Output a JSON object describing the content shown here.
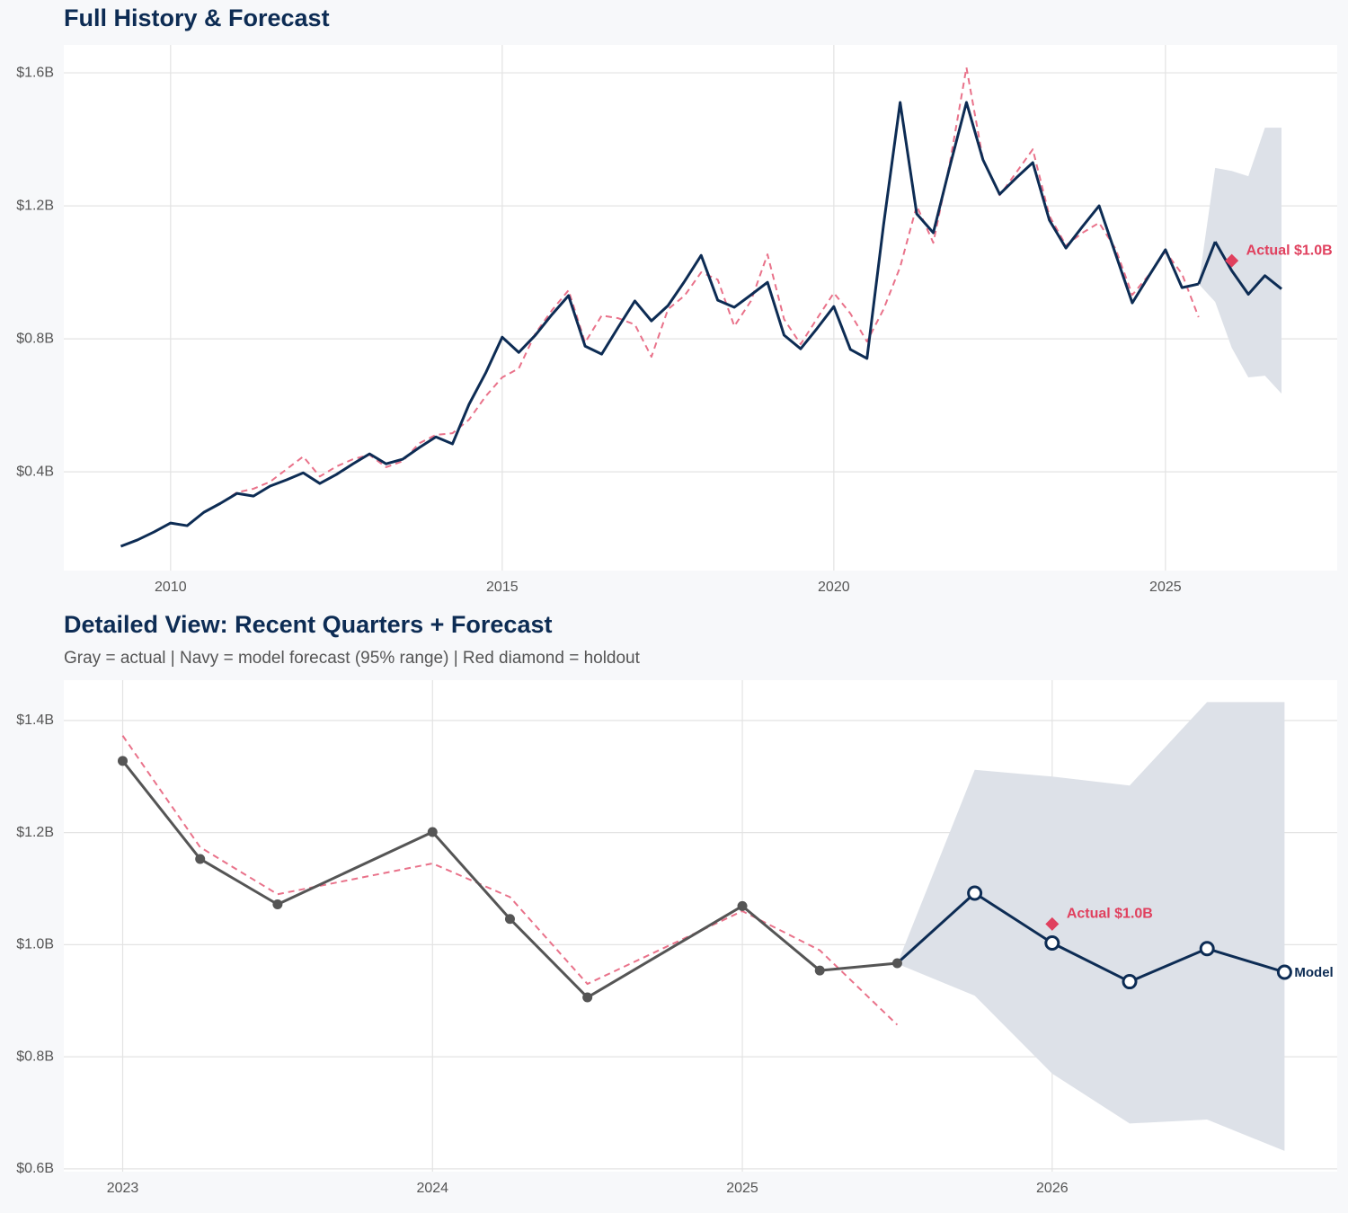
{
  "chart_data": [
    {
      "type": "line",
      "title": "Full History & Forecast",
      "xlim": [
        2008.39,
        2027.59
      ],
      "xticks": [
        2010,
        2015,
        2020,
        2025
      ],
      "ylim": [
        0.103,
        1.684
      ],
      "yticks": [
        {
          "value": 0.4,
          "label": "$0.4B"
        },
        {
          "value": 0.8,
          "label": "$0.8B"
        },
        {
          "value": 1.2,
          "label": "$1.2B"
        },
        {
          "value": 1.6,
          "label": "$1.6B"
        }
      ],
      "grid": true,
      "band": {
        "color": "#dde1e8",
        "x": [
          2025.5,
          2025.75,
          2026,
          2026.25,
          2026.5,
          2026.75
        ],
        "lower": [
          0.965,
          0.911,
          0.773,
          0.684,
          0.689,
          0.635
        ],
        "upper": [
          0.965,
          1.314,
          1.305,
          1.289,
          1.435,
          1.435
        ]
      },
      "series": [
        {
          "color": "#e9728a",
          "style": "dashed",
          "x": [
            2010.5,
            2010.75,
            2011,
            2011.25,
            2011.5,
            2011.75,
            2012,
            2012.25,
            2012.5,
            2012.75,
            2013,
            2013.25,
            2013.5,
            2013.75,
            2014,
            2014.25,
            2014.5,
            2014.75,
            2015,
            2015.25,
            2015.5,
            2015.75,
            2016,
            2016.25,
            2016.5,
            2016.75,
            2017,
            2017.25,
            2017.5,
            2017.75,
            2018,
            2018.25,
            2018.5,
            2018.75,
            2019,
            2019.25,
            2019.5,
            2019.75,
            2020,
            2020.25,
            2020.5,
            2020.75,
            2021,
            2021.25,
            2021.5,
            2021.75,
            2022,
            2022.25,
            2022.5,
            2022.75,
            2023,
            2023.25,
            2023.5,
            2023.75,
            2024,
            2024.25,
            2024.5,
            2024.75,
            2025,
            2025.25,
            2025.5
          ],
          "values": [
            0.278,
            0.305,
            0.338,
            0.349,
            0.37,
            0.408,
            0.446,
            0.386,
            0.416,
            0.438,
            0.451,
            0.414,
            0.432,
            0.486,
            0.511,
            0.516,
            0.557,
            0.627,
            0.684,
            0.711,
            0.816,
            0.886,
            0.946,
            0.789,
            0.87,
            0.862,
            0.843,
            0.746,
            0.889,
            0.93,
            1.0,
            0.978,
            0.838,
            0.914,
            1.054,
            0.859,
            0.784,
            0.862,
            0.938,
            0.876,
            0.792,
            0.889,
            1.016,
            1.2,
            1.089,
            1.33,
            1.616,
            1.338,
            1.232,
            1.3,
            1.37,
            1.17,
            1.081,
            1.119,
            1.149,
            1.07,
            0.932,
            0.992,
            1.062,
            0.995,
            0.865
          ]
        },
        {
          "color": "#0d2c54",
          "style": "solid",
          "x": [
            2009.25,
            2009.5,
            2009.75,
            2010,
            2010.25,
            2010.5,
            2010.75,
            2011,
            2011.25,
            2011.5,
            2011.75,
            2012,
            2012.25,
            2012.5,
            2012.75,
            2013,
            2013.25,
            2013.5,
            2013.75,
            2014,
            2014.25,
            2014.5,
            2014.75,
            2015,
            2015.25,
            2015.5,
            2015.75,
            2016,
            2016.25,
            2016.5,
            2016.75,
            2017,
            2017.25,
            2017.5,
            2017.75,
            2018,
            2018.25,
            2018.5,
            2018.75,
            2019,
            2019.25,
            2019.5,
            2019.75,
            2020,
            2020.25,
            2020.5,
            2020.75,
            2021,
            2021.25,
            2021.5,
            2021.75,
            2022,
            2022.25,
            2022.5,
            2022.75,
            2023,
            2023.25,
            2023.5,
            2023.75,
            2024,
            2024.25,
            2024.5,
            2024.75,
            2025,
            2025.25,
            2025.5
          ],
          "values": [
            0.176,
            0.195,
            0.219,
            0.246,
            0.238,
            0.278,
            0.305,
            0.335,
            0.327,
            0.357,
            0.376,
            0.397,
            0.365,
            0.392,
            0.424,
            0.454,
            0.424,
            0.438,
            0.473,
            0.505,
            0.484,
            0.603,
            0.697,
            0.805,
            0.759,
            0.811,
            0.873,
            0.93,
            0.778,
            0.754,
            0.835,
            0.914,
            0.854,
            0.9,
            0.973,
            1.051,
            0.916,
            0.895,
            0.932,
            0.97,
            0.811,
            0.77,
            0.832,
            0.897,
            0.768,
            0.741,
            1.143,
            1.511,
            1.176,
            1.119,
            1.319,
            1.511,
            1.338,
            1.235,
            1.284,
            1.33,
            1.157,
            1.073,
            1.138,
            1.2,
            1.054,
            0.908,
            0.989,
            1.068,
            0.954,
            0.965
          ]
        },
        {
          "color": "#0d2c54",
          "style": "solid",
          "connect": true,
          "x": [
            2025.75,
            2026,
            2026.25,
            2026.5,
            2026.75
          ],
          "values": [
            1.092,
            1.005,
            0.934,
            0.99,
            0.95
          ]
        }
      ],
      "annotation": {
        "x": 2026,
        "value": 1.035,
        "label": "Actual $1.0B",
        "color": "#e0405e"
      }
    },
    {
      "type": "line",
      "title": "Detailed View: Recent Quarters + Forecast",
      "subtitle": "Gray = actual  |  Navy = model forecast (95% range)  |  Red diamond = holdout",
      "xlim": [
        2022.81,
        2026.92
      ],
      "xticks": [
        2023,
        2024,
        2025,
        2026
      ],
      "ylim": [
        0.595,
        1.472
      ],
      "yticks": [
        {
          "value": 0.6,
          "label": "$0.6B"
        },
        {
          "value": 0.8,
          "label": "$0.8B"
        },
        {
          "value": 1.0,
          "label": "$1.0B"
        },
        {
          "value": 1.2,
          "label": "$1.2B"
        },
        {
          "value": 1.4,
          "label": "$1.4B"
        }
      ],
      "grid": true,
      "band": {
        "color": "#dde1e8",
        "x": [
          2025.5,
          2025.75,
          2026,
          2026.25,
          2026.5,
          2026.75
        ],
        "lower": [
          0.966,
          0.909,
          0.77,
          0.681,
          0.688,
          0.632
        ],
        "upper": [
          0.966,
          1.312,
          1.3,
          1.284,
          1.433,
          1.433
        ]
      },
      "series": [
        {
          "color": "#e9728a",
          "style": "dashed",
          "x": [
            2023,
            2023.25,
            2023.5,
            2024,
            2024.25,
            2024.5,
            2025,
            2025.25,
            2025.5
          ],
          "values": [
            1.373,
            1.174,
            1.09,
            1.145,
            1.085,
            0.93,
            1.06,
            0.99,
            0.857
          ]
        },
        {
          "color": "#555555",
          "style": "solid",
          "markers": "filled",
          "x": [
            2023,
            2023.25,
            2023.5,
            2024,
            2024.25,
            2024.5,
            2025,
            2025.25,
            2025.5
          ],
          "values": [
            1.328,
            1.153,
            1.072,
            1.201,
            1.046,
            0.906,
            1.069,
            0.954,
            0.967
          ]
        },
        {
          "color": "#0d2c54",
          "style": "solid",
          "markers": "open",
          "connect": true,
          "label": "Model",
          "x": [
            2025.75,
            2026,
            2026.25,
            2026.5,
            2026.75
          ],
          "values": [
            1.092,
            1.003,
            0.934,
            0.993,
            0.951
          ]
        }
      ],
      "annotation": {
        "x": 2026,
        "value": 1.037,
        "label": "Actual $1.0B",
        "color": "#e0405e"
      }
    }
  ]
}
